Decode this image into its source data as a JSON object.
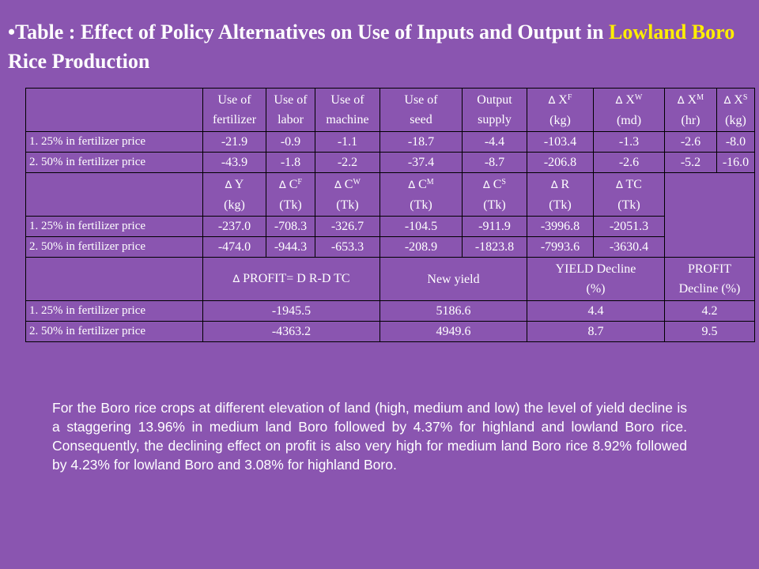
{
  "title": {
    "bullet": "•",
    "part1": "Table : Effect of Policy Alternatives on Use of Inputs and Output in ",
    "highlight": "Lowland Boro",
    "part2": " Rice Production"
  },
  "colors": {
    "background": "#8a55b0",
    "highlight": "#ffee00",
    "text": "#ffffff"
  },
  "table": {
    "delta": "∆",
    "section1": {
      "headers": [
        {
          "l1": "Use of",
          "l2": "fertilizer"
        },
        {
          "l1": "Use of",
          "l2": "labor"
        },
        {
          "l1": "Use of",
          "l2": "machine"
        },
        {
          "l1": "Use of",
          "l2": "seed"
        },
        {
          "l1": "Output",
          "l2": "supply"
        },
        {
          "sym": "X",
          "sup": "F",
          "l2": "(kg)"
        },
        {
          "sym": "X",
          "sup": "W",
          "l2": "(md)"
        },
        {
          "sym": "X",
          "sup": "M",
          "l2": "(hr)"
        },
        {
          "sym": "X",
          "sup": "S",
          "l2": "(kg)"
        }
      ],
      "rows": [
        {
          "label": "1. 25%  in fertilizer price",
          "values": [
            "-21.9",
            "-0.9",
            "-1.1",
            "-18.7",
            "-4.4",
            "-103.4",
            "-1.3",
            "-2.6",
            "-8.0"
          ]
        },
        {
          "label": "2. 50%  in fertilizer price",
          "values": [
            "-43.9",
            "-1.8",
            "-2.2",
            "-37.4",
            "-8.7",
            "-206.8",
            "-2.6",
            "-5.2",
            "-16.0"
          ]
        }
      ]
    },
    "section2": {
      "headers": [
        {
          "sym": "Y",
          "sup": "",
          "l2": "(kg)"
        },
        {
          "sym": "C",
          "sup": "F",
          "l2": "(Tk)"
        },
        {
          "sym": "C",
          "sup": "W",
          "l2": "(Tk)"
        },
        {
          "sym": "C",
          "sup": "M",
          "l2": "(Tk)"
        },
        {
          "sym": "C",
          "sup": "S",
          "l2": "(Tk)"
        },
        {
          "sym": "R",
          "sup": "",
          "l2": "(Tk)"
        },
        {
          "sym": "TC",
          "sup": "",
          "l2": "(Tk)"
        }
      ],
      "rows": [
        {
          "label": "1. 25%  in fertilizer price",
          "values": [
            "-237.0",
            "-708.3",
            "-326.7",
            "-104.5",
            "-911.9",
            "-3996.8",
            "-2051.3"
          ]
        },
        {
          "label": "2. 50%  in fertilizer price",
          "values": [
            "-474.0",
            "-944.3",
            "-653.3",
            "-208.9",
            "-1823.8",
            "-7993.6",
            "-3630.4"
          ]
        }
      ]
    },
    "section3": {
      "h_profit": "PROFIT= D R-D TC",
      "h_newyield": "New yield",
      "h_yield_l1": "YIELD Decline",
      "h_yield_l2": "(%)",
      "h_profitdec_l1": "PROFIT",
      "h_profitdec_l2": "Decline (%)",
      "rows": [
        {
          "label": "1. 25%  in fertilizer price",
          "values": [
            "-1945.5",
            "5186.6",
            "4.4",
            "4.2"
          ]
        },
        {
          "label": "2. 50%  in fertilizer price",
          "values": [
            "-4363.2",
            "4949.6",
            "8.7",
            "9.5"
          ]
        }
      ]
    }
  },
  "paragraph": "For the Boro rice crops at different elevation of land (high, medium and low) the level of yield decline is a staggering 13.96% in medium land Boro followed by 4.37% for highland and lowland Boro rice. Consequently, the declining effect on profit is also very high for medium land Boro rice 8.92% followed by 4.23% for lowland Boro and 3.08% for highland Boro."
}
